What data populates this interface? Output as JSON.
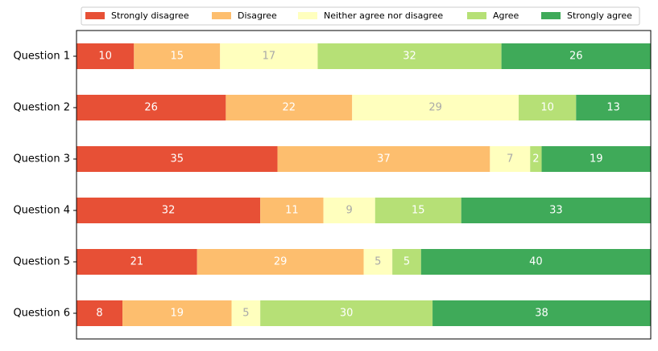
{
  "chart_data": {
    "type": "bar",
    "orientation": "horizontal",
    "stacked": true,
    "categories": [
      "Question 1",
      "Question 2",
      "Question 3",
      "Question 4",
      "Question 5",
      "Question 6"
    ],
    "series": [
      {
        "name": "Strongly disagree",
        "color": "#e75036",
        "values": [
          10,
          26,
          35,
          32,
          21,
          8
        ]
      },
      {
        "name": "Disagree",
        "color": "#fdbe6e",
        "values": [
          15,
          22,
          37,
          11,
          29,
          19
        ]
      },
      {
        "name": "Neither agree nor disagree",
        "color": "#ffffbe",
        "values": [
          17,
          29,
          7,
          9,
          5,
          5
        ]
      },
      {
        "name": "Agree",
        "color": "#b6e076",
        "values": [
          32,
          10,
          2,
          15,
          5,
          30
        ]
      },
      {
        "name": "Strongly agree",
        "color": "#3faa59",
        "values": [
          26,
          13,
          19,
          33,
          40,
          38
        ]
      }
    ],
    "xlim": [
      0,
      100
    ],
    "legend": "top"
  }
}
